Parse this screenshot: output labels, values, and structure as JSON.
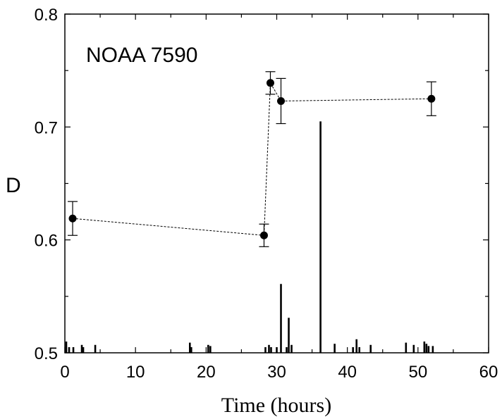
{
  "chart_data": {
    "type": "scatter",
    "title": "",
    "annotation": "NOAA 7590",
    "xlabel": "Time (hours)",
    "ylabel": "D",
    "xlim": [
      0,
      60
    ],
    "ylim": [
      0.5,
      0.8
    ],
    "x_ticks": [
      "0",
      "10",
      "20",
      "30",
      "40",
      "50",
      "60"
    ],
    "y_ticks": [
      "0.5",
      "0.6",
      "0.7",
      "0.8"
    ],
    "grid": false,
    "series": [
      {
        "style": "points with error bars, connected by dotted line",
        "points": [
          {
            "x": 1.1,
            "y": 0.619,
            "err": 0.015
          },
          {
            "x": 28.2,
            "y": 0.604,
            "err": 0.01
          },
          {
            "x": 29.1,
            "y": 0.739,
            "err": 0.01
          },
          {
            "x": 30.6,
            "y": 0.723,
            "err": 0.02
          },
          {
            "x": 51.9,
            "y": 0.725,
            "err": 0.015
          }
        ]
      },
      {
        "style": "vertical impulse lines from baseline",
        "impulses": [
          {
            "x": 0.2,
            "y": 0.51
          },
          {
            "x": 0.6,
            "y": 0.505
          },
          {
            "x": 1.2,
            "y": 0.505
          },
          {
            "x": 2.4,
            "y": 0.507
          },
          {
            "x": 2.6,
            "y": 0.505
          },
          {
            "x": 4.3,
            "y": 0.507
          },
          {
            "x": 17.7,
            "y": 0.509
          },
          {
            "x": 17.9,
            "y": 0.505
          },
          {
            "x": 20.3,
            "y": 0.507
          },
          {
            "x": 20.6,
            "y": 0.506
          },
          {
            "x": 28.4,
            "y": 0.505
          },
          {
            "x": 28.9,
            "y": 0.507
          },
          {
            "x": 29.2,
            "y": 0.505
          },
          {
            "x": 30.0,
            "y": 0.505
          },
          {
            "x": 30.6,
            "y": 0.561
          },
          {
            "x": 31.4,
            "y": 0.505
          },
          {
            "x": 31.7,
            "y": 0.531
          },
          {
            "x": 32.1,
            "y": 0.507
          },
          {
            "x": 36.2,
            "y": 0.705
          },
          {
            "x": 38.2,
            "y": 0.508
          },
          {
            "x": 40.8,
            "y": 0.505
          },
          {
            "x": 41.3,
            "y": 0.512
          },
          {
            "x": 41.7,
            "y": 0.505
          },
          {
            "x": 43.3,
            "y": 0.507
          },
          {
            "x": 48.3,
            "y": 0.509
          },
          {
            "x": 49.4,
            "y": 0.507
          },
          {
            "x": 50.9,
            "y": 0.51
          },
          {
            "x": 51.2,
            "y": 0.508
          },
          {
            "x": 51.5,
            "y": 0.506
          },
          {
            "x": 52.1,
            "y": 0.506
          }
        ]
      }
    ]
  }
}
